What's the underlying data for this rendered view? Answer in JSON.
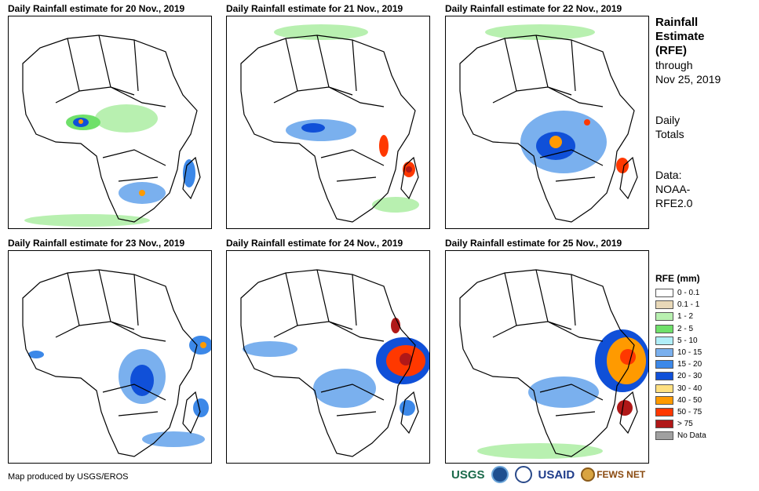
{
  "panels": [
    {
      "title": "Daily Rainfall estimate for 20 Nov., 2019"
    },
    {
      "title": "Daily Rainfall estimate for 21 Nov., 2019"
    },
    {
      "title": "Daily Rainfall estimate for 22 Nov., 2019"
    },
    {
      "title": "Daily Rainfall estimate for 23 Nov., 2019"
    },
    {
      "title": "Daily Rainfall estimate for 24 Nov., 2019"
    },
    {
      "title": "Daily Rainfall estimate for 25 Nov., 2019"
    }
  ],
  "sidebar": {
    "title_line1": "Rainfall",
    "title_line2": "Estimate",
    "title_line3": "(RFE)",
    "through": "through",
    "date": "Nov 25, 2019",
    "daily1": "Daily",
    "daily2": "Totals",
    "data1": "Data:",
    "data2": "NOAA-",
    "data3": "RFE2.0"
  },
  "legend": {
    "title": "RFE (mm)",
    "items": [
      {
        "label": "0 - 0.1",
        "color": "#ffffff"
      },
      {
        "label": "0.1 - 1",
        "color": "#e8d8b8"
      },
      {
        "label": "1 - 2",
        "color": "#b8f0b0"
      },
      {
        "label": "2 - 5",
        "color": "#6fe06a"
      },
      {
        "label": "5 - 10",
        "color": "#b0eef8"
      },
      {
        "label": "10 - 15",
        "color": "#7ab0ee"
      },
      {
        "label": "15 - 20",
        "color": "#3c88e8"
      },
      {
        "label": "20 - 30",
        "color": "#1050d8"
      },
      {
        "label": "30 - 40",
        "color": "#ffe080"
      },
      {
        "label": "40 - 50",
        "color": "#ff9a00"
      },
      {
        "label": "50 - 75",
        "color": "#ff3800"
      },
      {
        "label": "> 75",
        "color": "#b01818"
      },
      {
        "label": "No Data",
        "color": "#a0a0a0"
      }
    ]
  },
  "credit": "Map produced by USGS/EROS",
  "logos": {
    "usgs": "USGS",
    "usaid": "USAID",
    "fews": "FEWS NET"
  }
}
